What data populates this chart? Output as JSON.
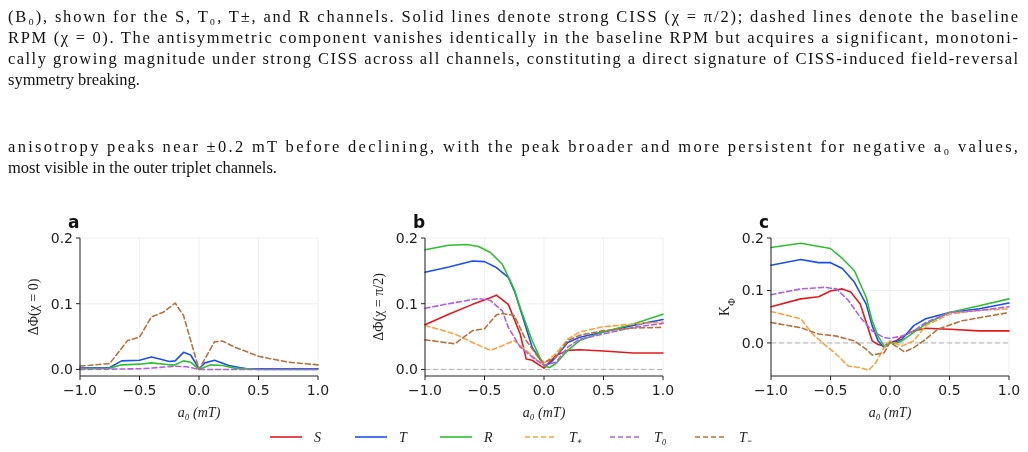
{
  "chart_data": [
    {
      "type": "line",
      "title": "a",
      "xlabel": "a₀ (mT)",
      "ylabel": "ΔΦ(χ = 0)",
      "xlim": [
        -1,
        1
      ],
      "ylim": [
        -0.01,
        0.2
      ],
      "xticks": [
        {
          "value": -1,
          "label": "−1.0"
        },
        {
          "value": -0.5,
          "label": "−0.5"
        },
        {
          "value": 0,
          "label": "0.0"
        },
        {
          "value": 0.5,
          "label": "0.5"
        },
        {
          "value": 1,
          "label": "1.0"
        }
      ],
      "yticks": [
        {
          "value": 0,
          "label": "0.0"
        },
        {
          "value": 0.1,
          "label": "0.1"
        },
        {
          "value": 0.2,
          "label": "0.2"
        }
      ],
      "grid": true,
      "legend": "bottom",
      "annotations": [
        "(B₀), shown for the S, T₀, T±, and R channels. Solid lines denote strong CISS (χ = π/2); dashed lines denote the baseline",
        "RPM (χ = 0). The antisymmetric component vanishes identically in the baseline RPM but acquires a significant, monotoni-",
        "cally growing magnitude under strong CISS across all channels, constituting a direct signature of CISS-induced field-reversal",
        "symmetry breaking.",
        "anisotropy peaks near ±0.2 mT before declining, with the peak broader and more persistent for negative a₀ values,",
        "most visible in the outer triplet channels."
      ],
      "series": [
        {
          "name": "T",
          "color": "#1a4ff0",
          "x": [
            -1,
            -0.75,
            -0.65,
            -0.5,
            -0.4,
            -0.33,
            -0.25,
            -0.2,
            -0.13,
            -0.07,
            0,
            0.05,
            0.13,
            0.25,
            0.4,
            1
          ],
          "values": [
            0.002,
            0.003,
            0.013,
            0.014,
            0.019,
            0.016,
            0.012,
            0.013,
            0.026,
            0.022,
            0.001,
            0.01,
            0.014,
            0.006,
            0.001,
            0.001
          ]
        },
        {
          "name": "R",
          "color": "#2ec02e",
          "x": [
            -1,
            -0.75,
            -0.65,
            -0.5,
            -0.4,
            -0.25,
            -0.2,
            -0.13,
            -0.07,
            0,
            0.1,
            0.2,
            0.3,
            0.5,
            1
          ],
          "values": [
            0.001,
            0.002,
            0.007,
            0.008,
            0.01,
            0.007,
            0.007,
            0.013,
            0.011,
            0,
            0.007,
            0.006,
            0.002,
            0,
            0
          ]
        },
        {
          "name": "T₀",
          "color": "#b060e8",
          "line_style": "dashed",
          "x": [
            -1,
            -0.5,
            -0.4,
            -0.2,
            -0.1,
            0,
            0.3,
            1
          ],
          "values": [
            0,
            0.001,
            0.002,
            0.005,
            0.004,
            0,
            0,
            0
          ]
        },
        {
          "name": "T₋",
          "color": "#b8733a",
          "line_style": "dashed",
          "x": [
            -1,
            -0.75,
            -0.6,
            -0.5,
            -0.4,
            -0.3,
            -0.2,
            -0.13,
            0,
            0.13,
            0.2,
            0.3,
            0.5,
            0.75,
            1
          ],
          "values": [
            0.005,
            0.009,
            0.044,
            0.049,
            0.08,
            0.087,
            0.101,
            0.082,
            0,
            0.042,
            0.043,
            0.034,
            0.02,
            0.011,
            0.007
          ]
        }
      ]
    },
    {
      "type": "line",
      "title": "b",
      "xlabel": "a₀ (mT)",
      "ylabel": "ΔΦ(χ = π/2)",
      "xlim": [
        -1,
        1
      ],
      "ylim": [
        -0.01,
        0.2
      ],
      "xticks": [
        {
          "value": -1,
          "label": "−1.0"
        },
        {
          "value": -0.5,
          "label": "−0.5"
        },
        {
          "value": 0,
          "label": "0.0"
        },
        {
          "value": 0.5,
          "label": "0.5"
        },
        {
          "value": 1,
          "label": "1.0"
        }
      ],
      "yticks": [
        {
          "value": 0,
          "label": "0.0"
        },
        {
          "value": 0.1,
          "label": "0.1"
        },
        {
          "value": 0.2,
          "label": "0.2"
        }
      ],
      "grid": true,
      "legend": "bottom",
      "ref_lines": [
        {
          "axis": "y",
          "value": 0,
          "color": "#aaaaaa",
          "line_style": "dashed"
        }
      ],
      "series": [
        {
          "name": "S",
          "color": "#e31a1c",
          "x": [
            -1,
            -0.8,
            -0.6,
            -0.45,
            -0.4,
            -0.3,
            -0.2,
            -0.15,
            -0.1,
            0,
            0.1,
            0.2,
            0.3,
            0.5,
            0.75,
            1
          ],
          "values": [
            0.068,
            0.084,
            0.099,
            0.109,
            0.113,
            0.099,
            0.054,
            0.016,
            0.014,
            0.002,
            0.021,
            0.029,
            0.03,
            0.028,
            0.025,
            0.025
          ]
        },
        {
          "name": "T",
          "color": "#1a4ff0",
          "x": [
            -1,
            -0.8,
            -0.6,
            -0.5,
            -0.4,
            -0.3,
            -0.25,
            -0.2,
            -0.1,
            0,
            0.05,
            0.1,
            0.2,
            0.3,
            0.5,
            0.75,
            1
          ],
          "values": [
            0.148,
            0.156,
            0.165,
            0.164,
            0.155,
            0.14,
            0.12,
            0.092,
            0.034,
            0.006,
            0.009,
            0.019,
            0.041,
            0.049,
            0.057,
            0.067,
            0.076
          ]
        },
        {
          "name": "R",
          "color": "#2ec02e",
          "x": [
            -1,
            -0.8,
            -0.65,
            -0.55,
            -0.45,
            -0.35,
            -0.25,
            -0.2,
            -0.1,
            -0.05,
            0,
            0.05,
            0.1,
            0.2,
            0.3,
            0.5,
            0.75,
            1
          ],
          "values": [
            0.182,
            0.189,
            0.19,
            0.187,
            0.178,
            0.16,
            0.122,
            0.094,
            0.044,
            0.024,
            0.005,
            0.003,
            0.009,
            0.029,
            0.044,
            0.057,
            0.069,
            0.084
          ]
        },
        {
          "name": "T₊",
          "color": "#ffa040",
          "line_style": "dashed",
          "x": [
            -1,
            -0.75,
            -0.6,
            -0.45,
            -0.35,
            -0.25,
            -0.15,
            -0.05,
            0,
            0.1,
            0.2,
            0.3,
            0.5,
            0.75,
            1
          ],
          "values": [
            0.067,
            0.054,
            0.041,
            0.029,
            0.036,
            0.044,
            0.029,
            0.013,
            0.009,
            0.024,
            0.046,
            0.057,
            0.065,
            0.069,
            0.072
          ]
        },
        {
          "name": "T₀",
          "color": "#b060e8",
          "line_style": "dashed",
          "x": [
            -1,
            -0.8,
            -0.55,
            -0.45,
            -0.35,
            -0.3,
            -0.2,
            -0.1,
            0,
            0.1,
            0.2,
            0.3,
            0.5,
            0.75,
            1
          ],
          "values": [
            0.093,
            0.1,
            0.108,
            0.105,
            0.089,
            0.064,
            0.034,
            0.019,
            0.006,
            0.011,
            0.034,
            0.046,
            0.054,
            0.064,
            0.07
          ]
        },
        {
          "name": "T₋",
          "color": "#b8733a",
          "line_style": "dashed",
          "x": [
            -1,
            -0.75,
            -0.6,
            -0.5,
            -0.4,
            -0.35,
            -0.25,
            -0.15,
            -0.05,
            0,
            0.1,
            0.2,
            0.3,
            0.5,
            0.75,
            1
          ],
          "values": [
            0.045,
            0.039,
            0.059,
            0.062,
            0.083,
            0.085,
            0.082,
            0.044,
            0.019,
            0.01,
            0.019,
            0.044,
            0.052,
            0.059,
            0.063,
            0.064
          ]
        }
      ]
    },
    {
      "type": "line",
      "title": "c",
      "xlabel": "a₀ (mT)",
      "ylabel": "K$_{Φ}$",
      "xlim": [
        -1,
        1
      ],
      "ylim": [
        -0.063,
        0.2
      ],
      "xticks": [
        {
          "value": -1,
          "label": "−1.0"
        },
        {
          "value": -0.5,
          "label": "−0.5"
        },
        {
          "value": 0,
          "label": "0.0"
        },
        {
          "value": 0.5,
          "label": "0.5"
        },
        {
          "value": 1,
          "label": "1.0"
        }
      ],
      "yticks": [
        {
          "value": 0,
          "label": "0.0"
        },
        {
          "value": 0.1,
          "label": "0.1"
        },
        {
          "value": 0.2,
          "label": "0.2"
        }
      ],
      "grid": true,
      "legend": "bottom",
      "ref_lines": [
        {
          "axis": "y",
          "value": 0,
          "color": "#aaaaaa",
          "line_style": "dashed"
        }
      ],
      "series": [
        {
          "name": "S",
          "color": "#e31a1c",
          "x": [
            -1,
            -0.75,
            -0.6,
            -0.5,
            -0.4,
            -0.33,
            -0.25,
            -0.15,
            -0.1,
            -0.05,
            0,
            0.05,
            0.1,
            0.2,
            0.3,
            0.5,
            0.75,
            1
          ],
          "values": [
            0.069,
            0.084,
            0.088,
            0.099,
            0.103,
            0.097,
            0.074,
            0.004,
            -0.003,
            -0.006,
            0.001,
            0.004,
            0.012,
            0.023,
            0.028,
            0.026,
            0.023,
            0.023
          ]
        },
        {
          "name": "T",
          "color": "#1a4ff0",
          "x": [
            -1,
            -0.75,
            -0.6,
            -0.5,
            -0.4,
            -0.3,
            -0.2,
            -0.15,
            -0.1,
            -0.05,
            0,
            0.05,
            0.1,
            0.2,
            0.3,
            0.5,
            0.75,
            1
          ],
          "values": [
            0.148,
            0.159,
            0.153,
            0.153,
            0.142,
            0.116,
            0.074,
            0.033,
            0.004,
            -0.009,
            0.001,
            0.002,
            0.007,
            0.033,
            0.046,
            0.058,
            0.065,
            0.076
          ]
        },
        {
          "name": "R",
          "color": "#2ec02e",
          "x": [
            -1,
            -0.75,
            -0.5,
            -0.4,
            -0.3,
            -0.2,
            -0.15,
            -0.1,
            -0.05,
            0,
            0.05,
            0.1,
            0.2,
            0.3,
            0.5,
            0.75,
            1
          ],
          "values": [
            0.182,
            0.19,
            0.18,
            0.161,
            0.138,
            0.087,
            0.042,
            0.013,
            -0.006,
            0.001,
            -0.001,
            0.004,
            0.02,
            0.036,
            0.058,
            0.071,
            0.084
          ]
        },
        {
          "name": "T₊",
          "color": "#ffa040",
          "line_style": "dashed",
          "x": [
            -1,
            -0.75,
            -0.65,
            -0.55,
            -0.45,
            -0.35,
            -0.25,
            -0.18,
            -0.12,
            -0.05,
            0,
            0.1,
            0.2,
            0.3,
            0.5,
            0.75,
            1
          ],
          "values": [
            0.06,
            0.046,
            0.017,
            -0.003,
            -0.022,
            -0.044,
            -0.047,
            -0.052,
            -0.038,
            -0.009,
            0.004,
            -0.006,
            0.004,
            0.033,
            0.055,
            0.062,
            0.065
          ]
        },
        {
          "name": "T₀",
          "color": "#b060e8",
          "line_style": "dashed",
          "x": [
            -1,
            -0.75,
            -0.55,
            -0.45,
            -0.35,
            -0.25,
            -0.15,
            -0.05,
            0,
            0.1,
            0.2,
            0.3,
            0.5,
            0.75,
            1
          ],
          "values": [
            0.092,
            0.103,
            0.106,
            0.103,
            0.081,
            0.049,
            0.023,
            0.01,
            0.009,
            0.013,
            0.023,
            0.039,
            0.058,
            0.062,
            0.069
          ]
        },
        {
          "name": "T₋",
          "color": "#b8733a",
          "line_style": "dashed",
          "x": [
            -1,
            -0.75,
            -0.6,
            -0.45,
            -0.3,
            -0.2,
            -0.15,
            -0.05,
            0,
            0.05,
            0.12,
            0.2,
            0.3,
            0.4,
            0.6,
            0.8,
            1
          ],
          "values": [
            0.039,
            0.029,
            0.017,
            0.013,
            0.004,
            -0.012,
            -0.023,
            -0.019,
            0.001,
            -0.006,
            -0.017,
            -0.009,
            0.007,
            0.026,
            0.042,
            0.05,
            0.058
          ]
        }
      ]
    }
  ]
}
